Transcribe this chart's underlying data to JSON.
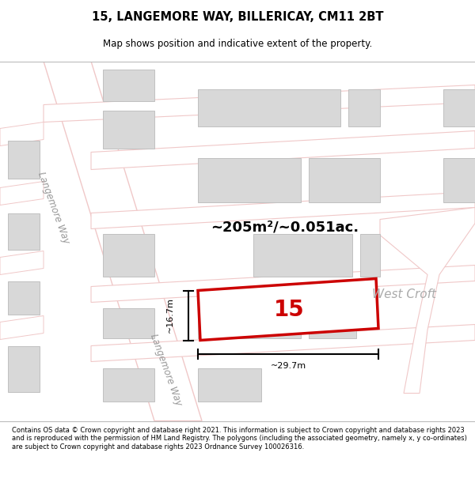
{
  "title": "15, LANGEMORE WAY, BILLERICAY, CM11 2BT",
  "subtitle": "Map shows position and indicative extent of the property.",
  "footer": "Contains OS data © Crown copyright and database right 2021. This information is subject to Crown copyright and database rights 2023 and is reproduced with the permission of HM Land Registry. The polygons (including the associated geometry, namely x, y co-ordinates) are subject to Crown copyright and database rights 2023 Ordnance Survey 100026316.",
  "map_bg": "#ffffff",
  "road_color": "#f0c8c8",
  "building_fill": "#d8d8d8",
  "building_edge": "#c0c0c0",
  "plot_outline": "#cc0000",
  "area_text": "~205m²/~0.051ac.",
  "width_label": "~29.7m",
  "height_label": "~16.7m",
  "road_label_left1": "Langemore Way",
  "road_label_left2": "Langemore Way",
  "road_label_right": "West Croft"
}
